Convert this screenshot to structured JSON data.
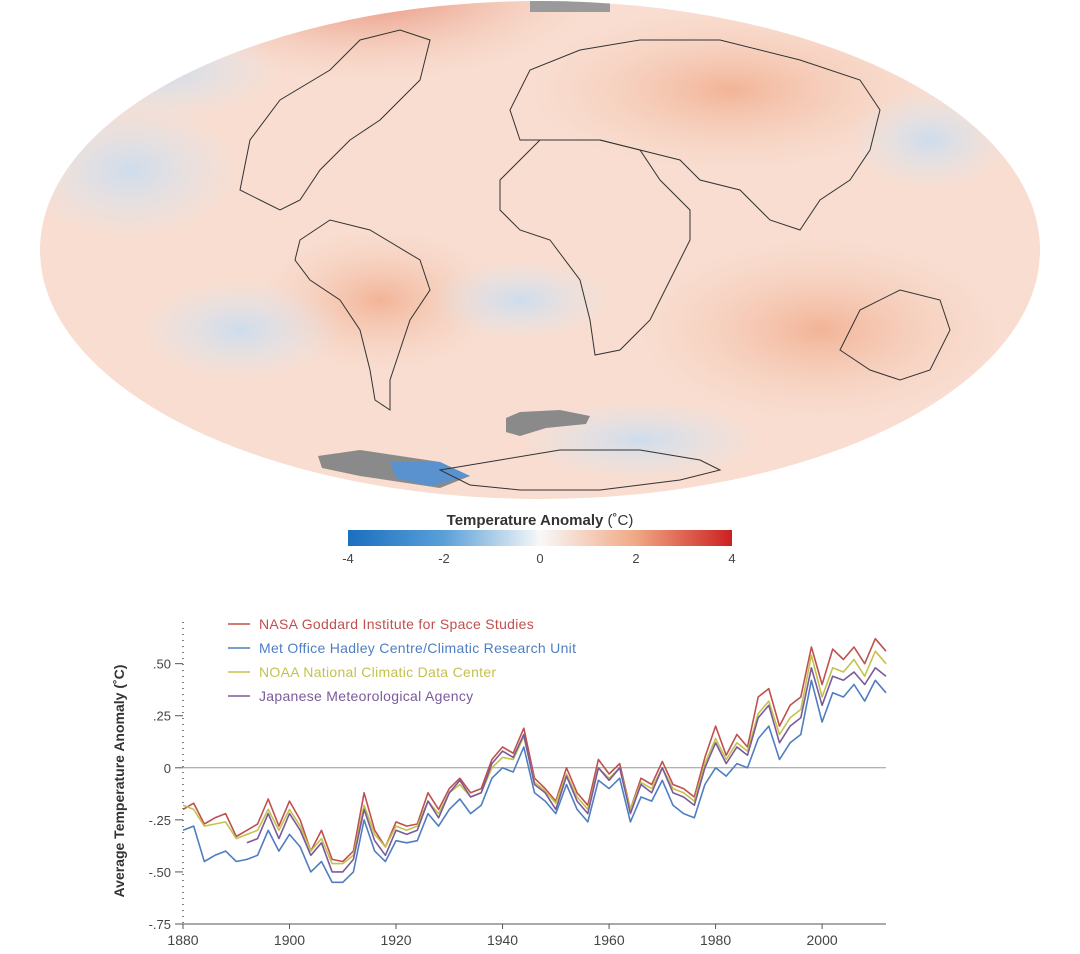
{
  "colorbar": {
    "title": "Temperature Anomaly",
    "unit": "(˚C)",
    "ticks": [
      "-4",
      "-2",
      "0",
      "2",
      "4"
    ],
    "colors": [
      "#1a6fbf",
      "#5aa0d8",
      "#f8f8f8",
      "#f0a884",
      "#cc2020"
    ]
  },
  "chart_data": {
    "type": "line",
    "ylabel": "Average Temperature Anomaly (˚C)",
    "ylim": [
      -0.75,
      0.7
    ],
    "xlim": [
      1880,
      2012
    ],
    "x_ticks": [
      "1880",
      "1900",
      "1920",
      "1940",
      "1960",
      "1980",
      "2000"
    ],
    "y_ticks": [
      {
        "v": 0.5,
        "label": ".50"
      },
      {
        "v": 0.25,
        "label": ".25"
      },
      {
        "v": 0,
        "label": "0"
      },
      {
        "v": -0.25,
        "label": "-.25"
      },
      {
        "v": -0.5,
        "label": "-.50"
      },
      {
        "v": -0.75,
        "label": "-.75"
      }
    ],
    "zero_line": true,
    "legend_position": "top-left",
    "x": [
      1880,
      1882,
      1884,
      1886,
      1888,
      1890,
      1892,
      1894,
      1896,
      1898,
      1900,
      1902,
      1904,
      1906,
      1908,
      1910,
      1912,
      1914,
      1916,
      1918,
      1920,
      1922,
      1924,
      1926,
      1928,
      1930,
      1932,
      1934,
      1936,
      1938,
      1940,
      1942,
      1944,
      1946,
      1948,
      1950,
      1952,
      1954,
      1956,
      1958,
      1960,
      1962,
      1964,
      1966,
      1968,
      1970,
      1972,
      1974,
      1976,
      1978,
      1980,
      1982,
      1984,
      1986,
      1988,
      1990,
      1992,
      1994,
      1996,
      1998,
      2000,
      2002,
      2004,
      2006,
      2008,
      2010,
      2012
    ],
    "series": [
      {
        "name": "NASA Goddard Institute for Space Studies",
        "color": "#c0504d",
        "values": [
          -0.2,
          -0.17,
          -0.27,
          -0.24,
          -0.22,
          -0.33,
          -0.3,
          -0.27,
          -0.15,
          -0.28,
          -0.16,
          -0.25,
          -0.4,
          -0.3,
          -0.44,
          -0.45,
          -0.4,
          -0.12,
          -0.3,
          -0.38,
          -0.26,
          -0.28,
          -0.27,
          -0.12,
          -0.2,
          -0.1,
          -0.05,
          -0.12,
          -0.1,
          0.04,
          0.1,
          0.07,
          0.19,
          -0.05,
          -0.1,
          -0.16,
          0.0,
          -0.12,
          -0.18,
          0.04,
          -0.03,
          0.02,
          -0.2,
          -0.05,
          -0.08,
          0.03,
          -0.08,
          -0.1,
          -0.14,
          0.05,
          0.2,
          0.06,
          0.16,
          0.1,
          0.34,
          0.38,
          0.2,
          0.3,
          0.34,
          0.58,
          0.4,
          0.57,
          0.52,
          0.58,
          0.5,
          0.62,
          0.56
        ]
      },
      {
        "name": "Met Office Hadley Centre/Climatic Research Unit",
        "color": "#4f7ec0",
        "values": [
          -0.3,
          -0.28,
          -0.45,
          -0.42,
          -0.4,
          -0.45,
          -0.44,
          -0.42,
          -0.3,
          -0.4,
          -0.32,
          -0.38,
          -0.5,
          -0.45,
          -0.55,
          -0.55,
          -0.5,
          -0.25,
          -0.4,
          -0.45,
          -0.35,
          -0.36,
          -0.35,
          -0.22,
          -0.28,
          -0.2,
          -0.15,
          -0.22,
          -0.18,
          -0.05,
          0.0,
          -0.02,
          0.1,
          -0.12,
          -0.16,
          -0.22,
          -0.08,
          -0.2,
          -0.26,
          -0.06,
          -0.1,
          -0.05,
          -0.26,
          -0.14,
          -0.16,
          -0.06,
          -0.18,
          -0.22,
          -0.24,
          -0.08,
          0.0,
          -0.04,
          0.02,
          0.0,
          0.14,
          0.2,
          0.04,
          0.12,
          0.16,
          0.42,
          0.22,
          0.36,
          0.34,
          0.4,
          0.32,
          0.42,
          0.36
        ]
      },
      {
        "name": "NOAA National Climatic Data Center",
        "color": "#c3c24d",
        "values": [
          -0.18,
          -0.2,
          -0.28,
          -0.27,
          -0.26,
          -0.34,
          -0.32,
          -0.3,
          -0.2,
          -0.3,
          -0.2,
          -0.28,
          -0.4,
          -0.34,
          -0.46,
          -0.46,
          -0.42,
          -0.18,
          -0.32,
          -0.38,
          -0.28,
          -0.3,
          -0.28,
          -0.16,
          -0.22,
          -0.12,
          -0.08,
          -0.14,
          -0.12,
          0.0,
          0.05,
          0.04,
          0.15,
          -0.07,
          -0.11,
          -0.17,
          -0.03,
          -0.14,
          -0.2,
          0.0,
          -0.05,
          0.0,
          -0.2,
          -0.07,
          -0.1,
          0.0,
          -0.1,
          -0.12,
          -0.16,
          0.02,
          0.14,
          0.04,
          0.12,
          0.08,
          0.26,
          0.32,
          0.16,
          0.24,
          0.28,
          0.54,
          0.34,
          0.48,
          0.46,
          0.52,
          0.44,
          0.56,
          0.5
        ]
      },
      {
        "name": "Japanese Meteorological Agency",
        "color": "#7a5a9a",
        "values": [
          null,
          null,
          null,
          null,
          null,
          null,
          -0.36,
          -0.34,
          -0.22,
          -0.34,
          -0.22,
          -0.3,
          -0.42,
          -0.36,
          -0.5,
          -0.5,
          -0.44,
          -0.2,
          -0.35,
          -0.42,
          -0.3,
          -0.32,
          -0.3,
          -0.16,
          -0.24,
          -0.12,
          -0.06,
          -0.14,
          -0.12,
          0.02,
          0.08,
          0.05,
          0.16,
          -0.08,
          -0.12,
          -0.2,
          -0.04,
          -0.16,
          -0.22,
          0.0,
          -0.06,
          0.0,
          -0.22,
          -0.08,
          -0.12,
          0.0,
          -0.12,
          -0.14,
          -0.18,
          0.0,
          0.12,
          0.02,
          0.1,
          0.06,
          0.24,
          0.3,
          0.12,
          0.2,
          0.24,
          0.48,
          0.3,
          0.44,
          0.42,
          0.46,
          0.4,
          0.48,
          0.44
        ]
      }
    ]
  }
}
